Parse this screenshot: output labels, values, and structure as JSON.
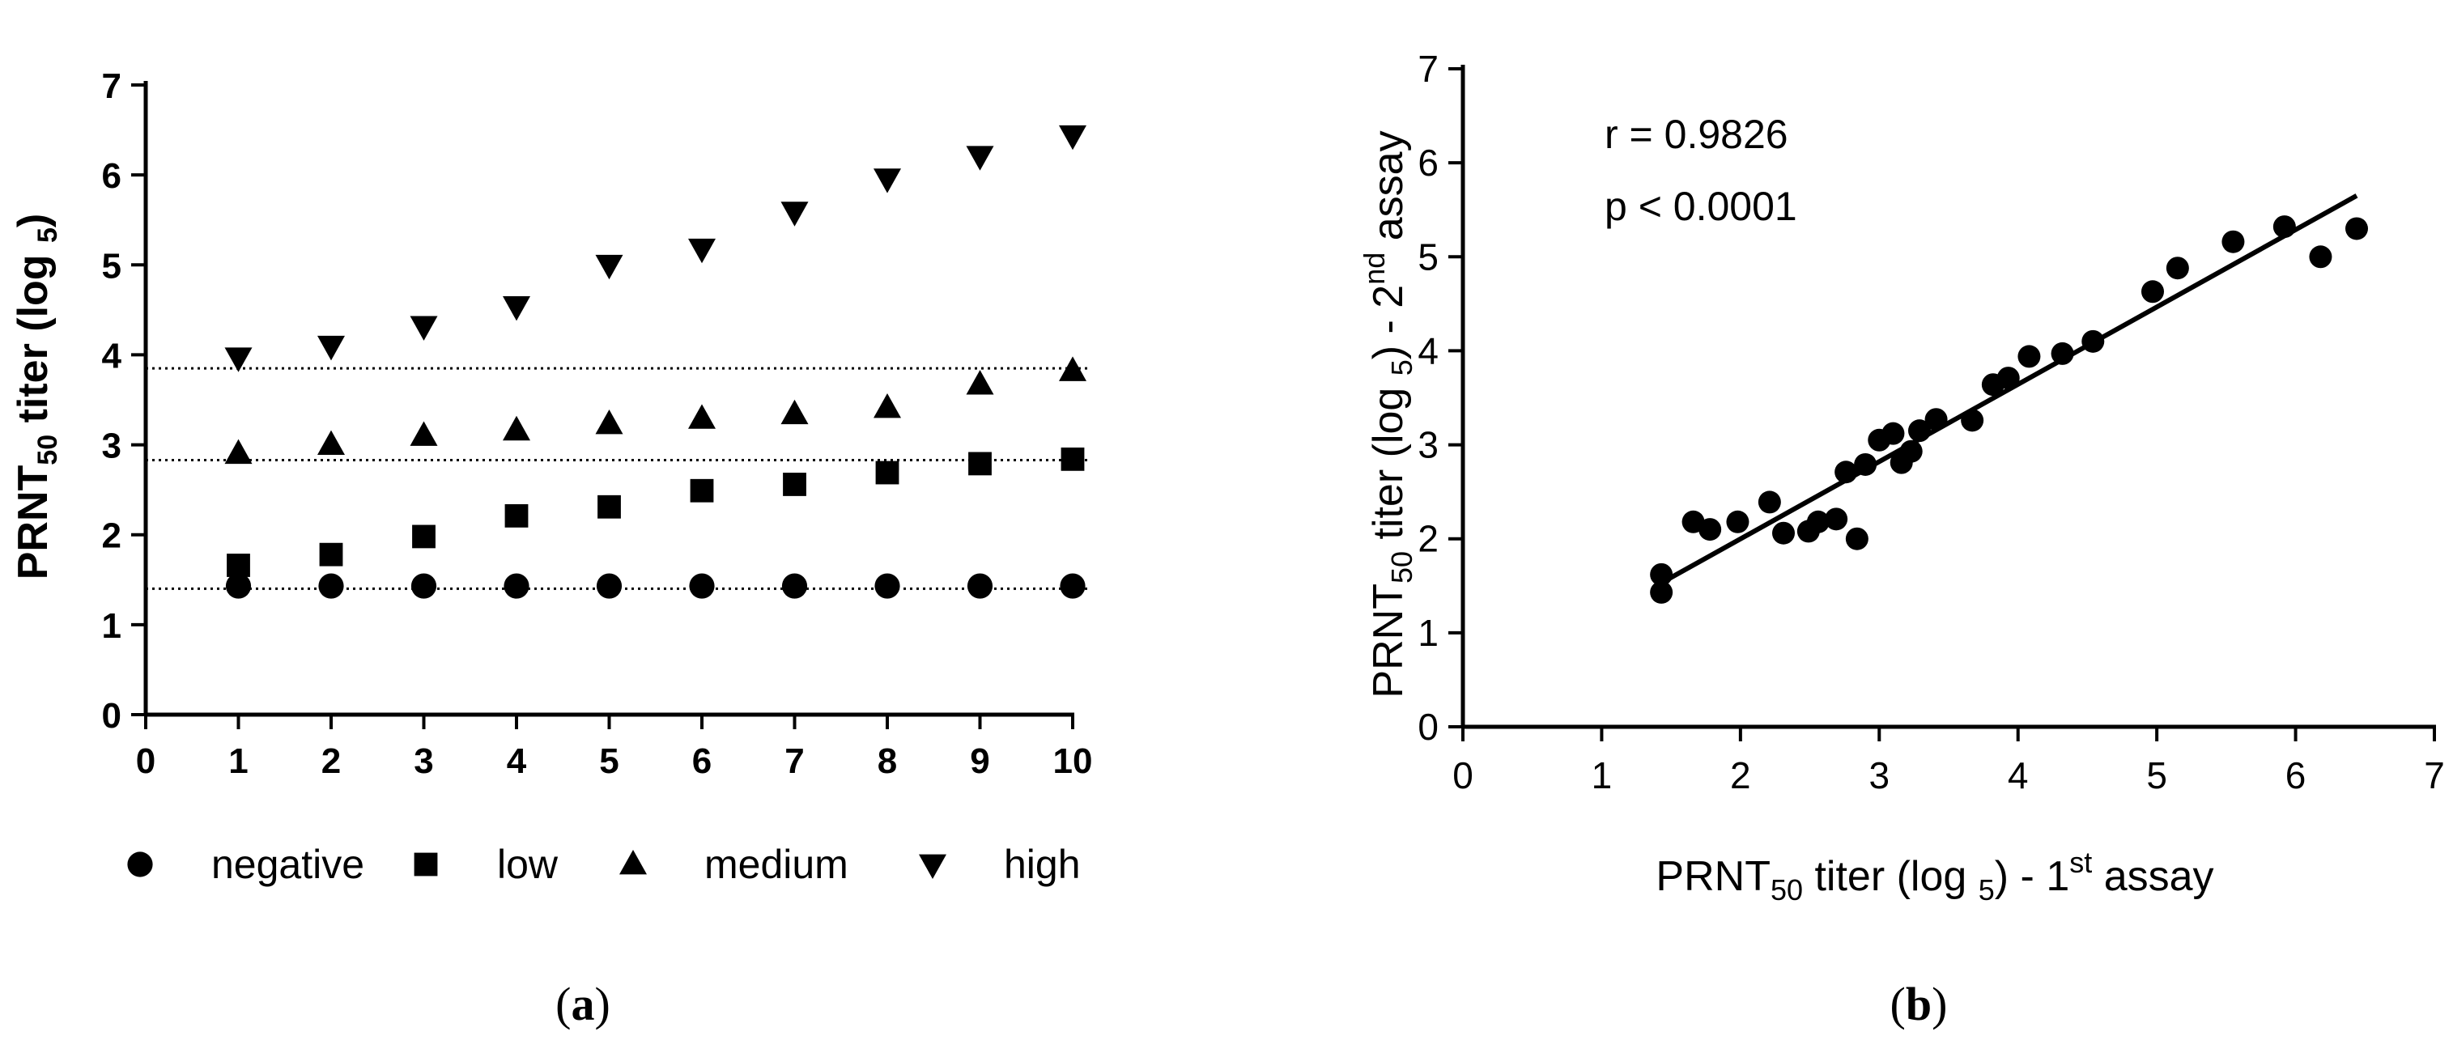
{
  "chart_data": [
    {
      "panel": "a",
      "type": "scatter",
      "caption": {
        "open": "(",
        "letter": "a",
        "close": ")"
      },
      "ylabel": {
        "main": "PRNT",
        "sub": "50",
        "rest": " titer (log ",
        "sub2": "5",
        "close": ")"
      },
      "xlabel": "",
      "xlim": [
        0,
        10
      ],
      "ylim": [
        0,
        7
      ],
      "xticks": [
        "0",
        "1",
        "2",
        "3",
        "4",
        "5",
        "6",
        "7",
        "8",
        "9",
        "10"
      ],
      "yticks": [
        "0",
        "1",
        "2",
        "3",
        "4",
        "5",
        "6",
        "7"
      ],
      "x": [
        1,
        2,
        3,
        4,
        5,
        6,
        7,
        8,
        9,
        10
      ],
      "series": [
        {
          "name": "negative",
          "marker": "circle",
          "values": [
            1.43,
            1.43,
            1.43,
            1.43,
            1.43,
            1.43,
            1.43,
            1.43,
            1.43,
            1.43
          ]
        },
        {
          "name": "low",
          "marker": "square",
          "values": [
            1.66,
            1.78,
            1.98,
            2.21,
            2.31,
            2.49,
            2.56,
            2.69,
            2.79,
            2.84
          ]
        },
        {
          "name": "medium",
          "marker": "triangle-up",
          "values": [
            2.9,
            3.0,
            3.1,
            3.16,
            3.23,
            3.29,
            3.34,
            3.41,
            3.67,
            3.82
          ]
        },
        {
          "name": "high",
          "marker": "triangle-down",
          "values": [
            3.97,
            4.1,
            4.32,
            4.54,
            5.0,
            5.18,
            5.59,
            5.96,
            6.21,
            6.44
          ]
        }
      ],
      "reference_lines": [
        1.4,
        2.83,
        3.85
      ]
    },
    {
      "panel": "b",
      "type": "scatter",
      "caption": {
        "open": "(",
        "letter": "b",
        "close": ")"
      },
      "xlabel": {
        "main": "PRNT",
        "sub": "50",
        "rest": " titer (log ",
        "sub2": "5",
        "close": ") - 1",
        "sup": "st",
        "tail": " assay"
      },
      "ylabel": {
        "main": "PRNT",
        "sub": "50",
        "rest": " titer (log ",
        "sub2": "5",
        "close": ") - 2",
        "sup": "nd",
        "tail": " assay"
      },
      "xlim": [
        0,
        7
      ],
      "ylim": [
        0,
        7
      ],
      "xticks": [
        "0",
        "1",
        "2",
        "3",
        "4",
        "5",
        "6",
        "7"
      ],
      "yticks": [
        "0",
        "1",
        "2",
        "3",
        "4",
        "5",
        "6",
        "7"
      ],
      "annotations": [
        "r = 0.9826",
        "p < 0.0001"
      ],
      "points": [
        {
          "x": 1.43,
          "y": 1.43
        },
        {
          "x": 1.43,
          "y": 1.62
        },
        {
          "x": 1.66,
          "y": 2.18
        },
        {
          "x": 1.78,
          "y": 2.1
        },
        {
          "x": 1.98,
          "y": 2.18
        },
        {
          "x": 2.21,
          "y": 2.39
        },
        {
          "x": 2.31,
          "y": 2.06
        },
        {
          "x": 2.49,
          "y": 2.08
        },
        {
          "x": 2.56,
          "y": 2.18
        },
        {
          "x": 2.69,
          "y": 2.21
        },
        {
          "x": 2.76,
          "y": 2.71
        },
        {
          "x": 2.84,
          "y": 2.0
        },
        {
          "x": 2.9,
          "y": 2.79
        },
        {
          "x": 3.0,
          "y": 3.05
        },
        {
          "x": 3.1,
          "y": 3.12
        },
        {
          "x": 3.16,
          "y": 2.81
        },
        {
          "x": 3.23,
          "y": 2.93
        },
        {
          "x": 3.29,
          "y": 3.15
        },
        {
          "x": 3.41,
          "y": 3.27
        },
        {
          "x": 3.67,
          "y": 3.26
        },
        {
          "x": 3.82,
          "y": 3.64
        },
        {
          "x": 3.93,
          "y": 3.71
        },
        {
          "x": 4.08,
          "y": 3.94
        },
        {
          "x": 4.32,
          "y": 3.97
        },
        {
          "x": 4.54,
          "y": 4.1
        },
        {
          "x": 4.97,
          "y": 4.63
        },
        {
          "x": 5.15,
          "y": 4.88
        },
        {
          "x": 5.55,
          "y": 5.16
        },
        {
          "x": 5.92,
          "y": 5.32
        },
        {
          "x": 6.18,
          "y": 5.0
        },
        {
          "x": 6.44,
          "y": 5.3
        }
      ],
      "fit_line": {
        "x": [
          1.43,
          6.44
        ],
        "y": [
          1.53,
          5.65
        ]
      }
    }
  ]
}
